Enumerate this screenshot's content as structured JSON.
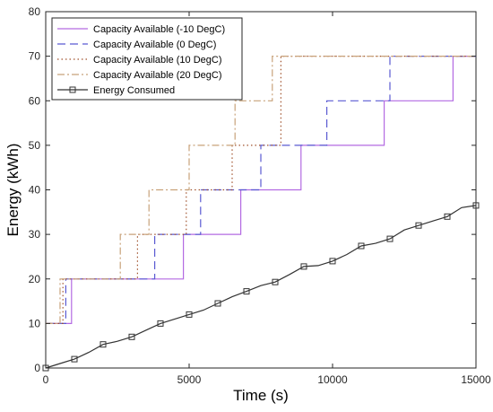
{
  "chart_data": {
    "type": "line",
    "title": "",
    "xlabel": "Time (s)",
    "ylabel": "Energy (kWh)",
    "xlim": [
      0,
      15000
    ],
    "ylim": [
      0,
      80
    ],
    "x_ticks": [
      0,
      5000,
      10000,
      15000
    ],
    "y_ticks": [
      0,
      10,
      20,
      30,
      40,
      50,
      60,
      70,
      80
    ],
    "x_tick_labels": [
      "0",
      "5000",
      "10000",
      "15000"
    ],
    "y_tick_labels": [
      "0",
      "10",
      "20",
      "30",
      "40",
      "50",
      "60",
      "70",
      "80"
    ],
    "grid": false,
    "legend_position": "top-left",
    "series": [
      {
        "name": "Capacity Available (-10 DegC)",
        "color": "#b36ae2",
        "dash": "solid",
        "marker": "none",
        "x": [
          0,
          900,
          900,
          4800,
          4800,
          6800,
          6800,
          8900,
          8900,
          11800,
          11800,
          14200,
          14200,
          15000
        ],
        "y": [
          10,
          10,
          20,
          20,
          30,
          30,
          40,
          40,
          50,
          50,
          60,
          60,
          70,
          70
        ]
      },
      {
        "name": "Capacity Available (0 DegC)",
        "color": "#5a5ad2",
        "dash": "dashed",
        "marker": "none",
        "x": [
          0,
          700,
          700,
          3800,
          3800,
          5400,
          5400,
          7500,
          7500,
          9800,
          9800,
          12000,
          12000,
          15000
        ],
        "y": [
          10,
          10,
          20,
          20,
          30,
          30,
          40,
          40,
          50,
          50,
          60,
          60,
          70,
          70
        ]
      },
      {
        "name": "Capacity Available (10 DegC)",
        "color": "#a0522d",
        "dash": "dotted",
        "marker": "none",
        "x": [
          0,
          600,
          600,
          3200,
          3200,
          4900,
          4900,
          6500,
          6500,
          8200,
          8200,
          15000
        ],
        "y": [
          10,
          10,
          20,
          20,
          30,
          30,
          40,
          40,
          50,
          50,
          70,
          70
        ]
      },
      {
        "name": "Capacity Available (20 DegC)",
        "color": "#c8a27a",
        "dash": "dashdot",
        "marker": "none",
        "x": [
          0,
          500,
          500,
          2600,
          2600,
          3600,
          3600,
          5000,
          5000,
          6600,
          6600,
          7900,
          7900,
          15000
        ],
        "y": [
          10,
          10,
          20,
          20,
          30,
          30,
          40,
          40,
          50,
          50,
          60,
          60,
          70,
          70
        ]
      },
      {
        "name": "Energy Consumed",
        "color": "#333333",
        "dash": "solid",
        "marker": "square",
        "x": [
          0,
          500,
          1000,
          1500,
          2000,
          2500,
          3000,
          3500,
          4000,
          4500,
          5000,
          5500,
          6000,
          6500,
          7000,
          7500,
          8000,
          8500,
          9000,
          9500,
          10000,
          10500,
          11000,
          11500,
          12000,
          12500,
          13000,
          13500,
          14000,
          14500,
          15000
        ],
        "y": [
          0,
          1,
          2,
          3.5,
          5.3,
          6,
          7,
          8.5,
          10,
          11,
          12,
          13,
          14.5,
          16,
          17.2,
          18.5,
          19.3,
          21,
          22.8,
          23,
          24,
          25.5,
          27.4,
          28,
          29,
          31,
          32,
          33,
          34,
          36,
          36.5
        ],
        "marker_indices": [
          0,
          2,
          4,
          6,
          8,
          10,
          12,
          14,
          16,
          18,
          20,
          22,
          24,
          26,
          28,
          30
        ]
      }
    ]
  }
}
